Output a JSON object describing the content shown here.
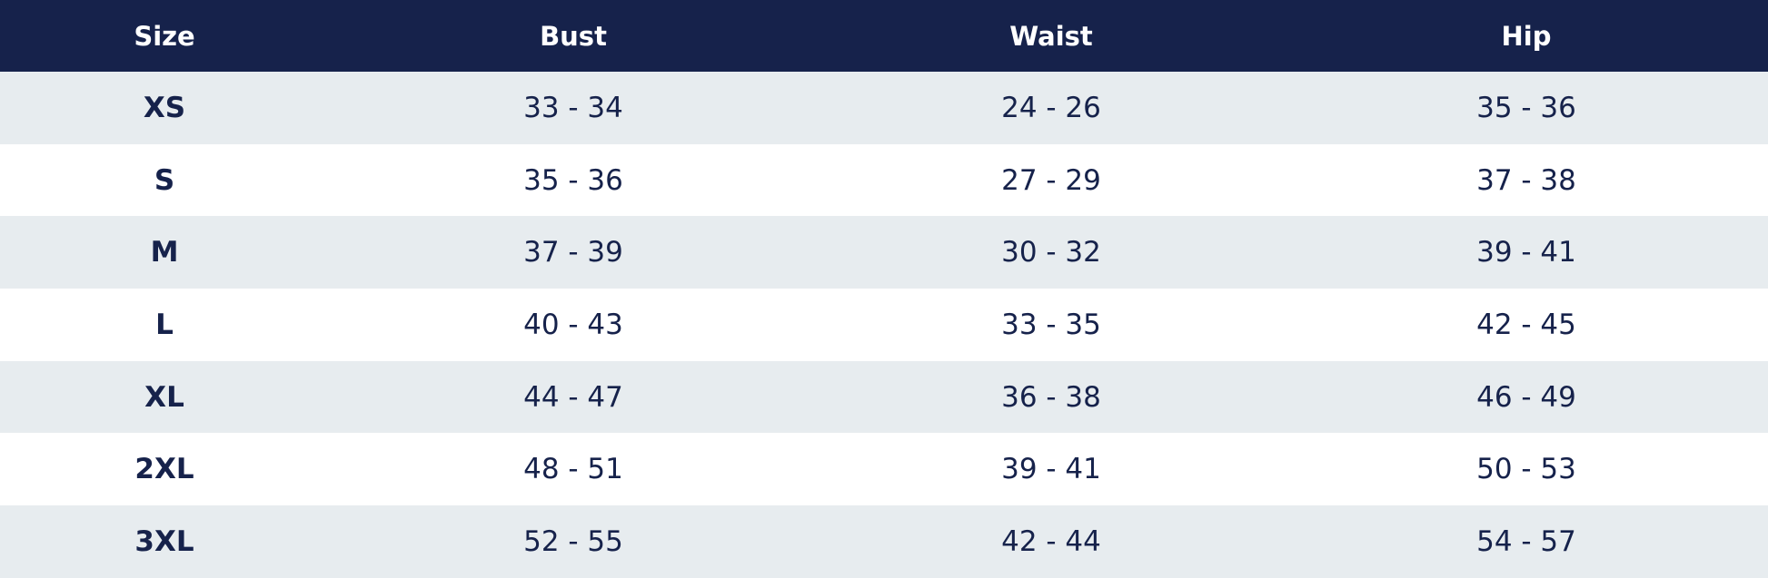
{
  "table": {
    "header": [
      "Size",
      "Bust",
      "Waist",
      "Hip"
    ],
    "rows": [
      [
        "XS",
        "33 - 34",
        "24 - 26",
        "35 - 36"
      ],
      [
        "S",
        "35 - 36",
        "27 - 29",
        "37 - 38"
      ],
      [
        "M",
        "37 - 39",
        "30 - 32",
        "39 - 41"
      ],
      [
        "L",
        "40 - 43",
        "33 - 35",
        "42 - 45"
      ],
      [
        "XL",
        "44 - 47",
        "36 - 38",
        "46 - 49"
      ],
      [
        "2XL",
        "48 - 51",
        "39 - 41",
        "50 - 53"
      ],
      [
        "3XL",
        "52 - 55",
        "42 - 44",
        "54 - 57"
      ]
    ]
  }
}
